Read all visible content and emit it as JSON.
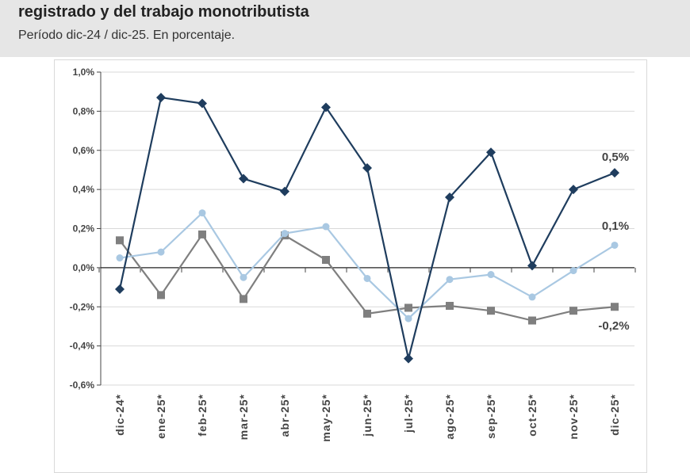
{
  "header": {
    "title": "registrado y del trabajo monotributista",
    "subtitle": "Período dic-24 / dic-25. En porcentaje."
  },
  "chart_data": {
    "type": "line",
    "categories": [
      "dic-24*",
      "ene-25*",
      "feb-25*",
      "mar-25*",
      "abr-25*",
      "may-25*",
      "jun-25*",
      "jul-25*",
      "ago-25*",
      "sep-25*",
      "oct-25*",
      "nov-25*",
      "dic-25*"
    ],
    "ylim": [
      -0.6,
      1.0
    ],
    "yticks": [
      "-0,6%",
      "-0,4%",
      "-0,2%",
      "0,0%",
      "0,2%",
      "0,4%",
      "0,6%",
      "0,8%",
      "1,0%"
    ],
    "ytick_values": [
      -0.6,
      -0.4,
      -0.2,
      0,
      0.2,
      0.4,
      0.6,
      0.8,
      1.0
    ],
    "grid": true,
    "series": [
      {
        "color": "#1f3d5e",
        "marker": "diamond",
        "values": [
          -0.11,
          0.87,
          0.84,
          0.455,
          0.39,
          0.82,
          0.51,
          -0.465,
          0.36,
          0.59,
          0.01,
          0.4,
          0.485
        ],
        "end_label": "0,5%"
      },
      {
        "color": "#a9c8e2",
        "marker": "circle",
        "values": [
          0.05,
          0.08,
          0.28,
          -0.05,
          0.175,
          0.21,
          -0.055,
          -0.26,
          -0.06,
          -0.035,
          -0.15,
          -0.015,
          0.115
        ],
        "end_label": "0,1%"
      },
      {
        "color": "#7f7f7f",
        "marker": "square",
        "values": [
          0.14,
          -0.14,
          0.17,
          -0.16,
          0.165,
          0.04,
          -0.235,
          -0.205,
          -0.195,
          -0.22,
          -0.27,
          -0.22,
          -0.2
        ],
        "end_label": "-0,2%"
      }
    ]
  }
}
